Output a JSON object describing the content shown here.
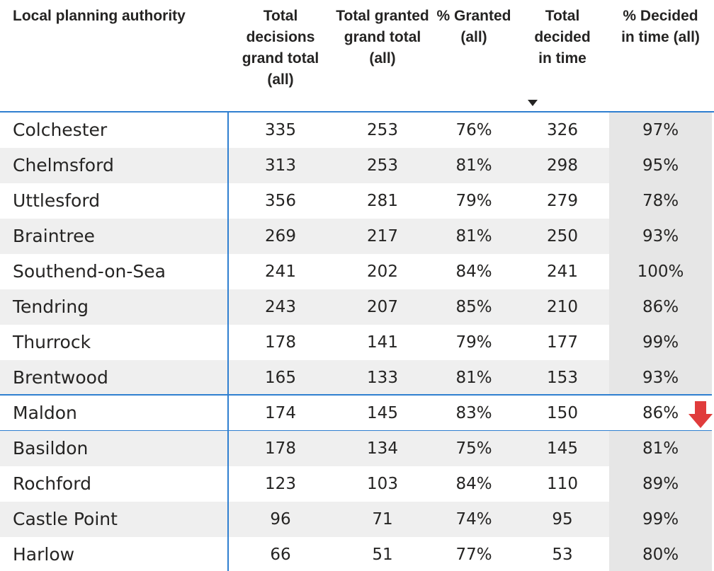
{
  "table": {
    "headers": [
      "Local planning authority",
      "Total decisions grand total (all)",
      "Total granted grand total (all)",
      "% Granted (all)",
      "Total decided in time",
      "% Decided in time (all)"
    ],
    "rows": [
      [
        "Colchester",
        "335",
        "253",
        "76%",
        "326",
        "97%"
      ],
      [
        "Chelmsford",
        "313",
        "253",
        "81%",
        "298",
        "95%"
      ],
      [
        "Uttlesford",
        "356",
        "281",
        "79%",
        "279",
        "78%"
      ],
      [
        "Braintree",
        "269",
        "217",
        "81%",
        "250",
        "93%"
      ],
      [
        "Southend-on-Sea",
        "241",
        "202",
        "84%",
        "241",
        "100%"
      ],
      [
        "Tendring",
        "243",
        "207",
        "85%",
        "210",
        "86%"
      ],
      [
        "Thurrock",
        "178",
        "141",
        "79%",
        "177",
        "99%"
      ],
      [
        "Brentwood",
        "165",
        "133",
        "81%",
        "153",
        "93%"
      ],
      [
        "Maldon",
        "174",
        "145",
        "83%",
        "150",
        "86%"
      ],
      [
        "Basildon",
        "178",
        "134",
        "75%",
        "145",
        "81%"
      ],
      [
        "Rochford",
        "123",
        "103",
        "84%",
        "110",
        "89%"
      ],
      [
        "Castle Point",
        "96",
        "71",
        "74%",
        "95",
        "99%"
      ],
      [
        "Harlow",
        "66",
        "51",
        "77%",
        "53",
        "80%"
      ]
    ]
  }
}
